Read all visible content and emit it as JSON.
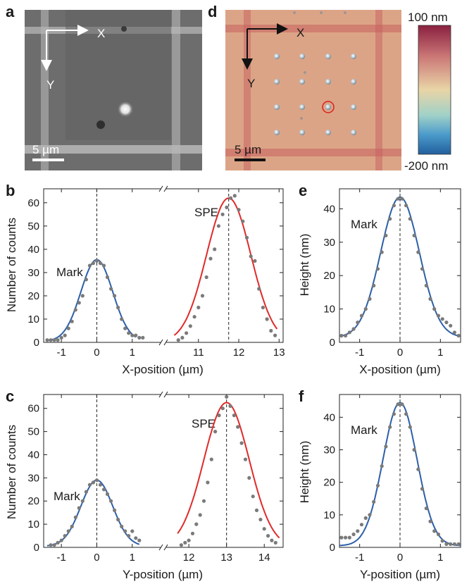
{
  "panel_letters": {
    "a": "a",
    "b": "b",
    "c": "c",
    "d": "d",
    "e": "e",
    "f": "f"
  },
  "images": {
    "a": {
      "axis_x": "X",
      "axis_y": "Y",
      "scale_label": "5 µm"
    },
    "d": {
      "axis_x": "X",
      "axis_y": "Y",
      "scale_label": "5 µm",
      "colorbar": {
        "max_label": "100 nm",
        "min_label": "-200 nm",
        "colors": [
          "#8a2040",
          "#cc7a78",
          "#e9d5a6",
          "#9fd1c8",
          "#4a9acb",
          "#215f9c"
        ]
      }
    }
  },
  "colors": {
    "mark_fit": "#2d5fa8",
    "spe_fit": "#e02a2a",
    "data_points": "#7a7a7a",
    "map_bg": "#dca486",
    "map_line": "#c6605f"
  },
  "chart_data": [
    {
      "id": "b",
      "type": "scatter",
      "ylabel": "Number of counts",
      "xlabel": "X-position (µm)",
      "ylim": [
        0,
        66
      ],
      "yticks": [
        "0",
        "10",
        "20",
        "30",
        "40",
        "50",
        "60"
      ],
      "broken_axis": true,
      "segments": [
        {
          "xlim": [
            -1.5,
            1.8
          ],
          "xticks": [
            "-1",
            "0",
            "1"
          ]
        },
        {
          "xlim": [
            10.2,
            13.1
          ],
          "xticks": [
            "11",
            "12",
            "13"
          ]
        }
      ],
      "dashed_lines": [
        0,
        11.75
      ],
      "annotations": [
        {
          "text": "Mark"
        },
        {
          "text": "SPE"
        }
      ],
      "fits": [
        {
          "name": "Mark",
          "center": 0,
          "sigma": 0.45,
          "amplitude": 35,
          "baseline": 0.5,
          "range": [
            -1.4,
            1.1
          ]
        },
        {
          "name": "SPE",
          "center": 11.75,
          "sigma": 0.55,
          "amplitude": 62,
          "baseline": 0,
          "range": [
            10.4,
            12.95
          ]
        }
      ],
      "points": {
        "Mark": [
          [
            -1.4,
            1
          ],
          [
            -1.3,
            1
          ],
          [
            -1.2,
            1
          ],
          [
            -1.1,
            1
          ],
          [
            -1.0,
            2
          ],
          [
            -0.9,
            3
          ],
          [
            -0.8,
            6
          ],
          [
            -0.7,
            9
          ],
          [
            -0.6,
            14
          ],
          [
            -0.5,
            17
          ],
          [
            -0.4,
            20
          ],
          [
            -0.3,
            27
          ],
          [
            -0.2,
            33
          ],
          [
            -0.1,
            34
          ],
          [
            0,
            35
          ],
          [
            0.1,
            34
          ],
          [
            0.2,
            33
          ],
          [
            0.3,
            28
          ],
          [
            0.4,
            23
          ],
          [
            0.5,
            20
          ],
          [
            0.6,
            15
          ],
          [
            0.7,
            10
          ],
          [
            0.8,
            6
          ],
          [
            0.9,
            4
          ],
          [
            1.0,
            3
          ],
          [
            1.1,
            3
          ],
          [
            1.2,
            2
          ],
          [
            1.3,
            2
          ]
        ],
        "SPE": [
          [
            10.5,
            1
          ],
          [
            10.6,
            2
          ],
          [
            10.7,
            4
          ],
          [
            10.8,
            7
          ],
          [
            10.9,
            11
          ],
          [
            11.0,
            15
          ],
          [
            11.1,
            20
          ],
          [
            11.2,
            28
          ],
          [
            11.3,
            36
          ],
          [
            11.4,
            40
          ],
          [
            11.5,
            50
          ],
          [
            11.6,
            55
          ],
          [
            11.7,
            58
          ],
          [
            11.8,
            62
          ],
          [
            11.9,
            63
          ],
          [
            12.0,
            57
          ],
          [
            12.1,
            52
          ],
          [
            12.2,
            45
          ],
          [
            12.3,
            37
          ],
          [
            12.4,
            35
          ],
          [
            12.5,
            23
          ],
          [
            12.6,
            15
          ],
          [
            12.7,
            10
          ],
          [
            12.8,
            5
          ],
          [
            12.9,
            3
          ]
        ]
      }
    },
    {
      "id": "c",
      "type": "scatter",
      "ylabel": "Number of counts",
      "xlabel": "Y-position (µm)",
      "ylim": [
        0,
        66
      ],
      "yticks": [
        "0",
        "10",
        "20",
        "30",
        "40",
        "50",
        "60"
      ],
      "broken_axis": true,
      "segments": [
        {
          "xlim": [
            -1.5,
            1.8
          ],
          "xticks": [
            "-1",
            "0",
            "1"
          ]
        },
        {
          "xlim": [
            11.4,
            14.5
          ],
          "xticks": [
            "12",
            "13",
            "14"
          ]
        }
      ],
      "dashed_lines": [
        0,
        13
      ],
      "annotations": [
        {
          "text": "Mark"
        },
        {
          "text": "SPE"
        }
      ],
      "fits": [
        {
          "name": "Mark",
          "center": 0,
          "sigma": 0.45,
          "amplitude": 28.5,
          "baseline": 0.5,
          "range": [
            -1.4,
            1.2
          ]
        },
        {
          "name": "SPE",
          "center": 13,
          "sigma": 0.6,
          "amplitude": 62.5,
          "baseline": 0,
          "range": [
            11.7,
            14.4
          ]
        }
      ],
      "points": {
        "Mark": [
          [
            -1.3,
            1
          ],
          [
            -1.2,
            1
          ],
          [
            -1.1,
            2
          ],
          [
            -1.0,
            3
          ],
          [
            -0.9,
            5
          ],
          [
            -0.8,
            7
          ],
          [
            -0.7,
            9
          ],
          [
            -0.6,
            13
          ],
          [
            -0.5,
            17
          ],
          [
            -0.4,
            20
          ],
          [
            -0.3,
            24
          ],
          [
            -0.2,
            27
          ],
          [
            -0.1,
            28
          ],
          [
            0,
            29
          ],
          [
            0.1,
            27
          ],
          [
            0.2,
            25
          ],
          [
            0.3,
            23
          ],
          [
            0.4,
            20
          ],
          [
            0.5,
            16
          ],
          [
            0.6,
            12
          ],
          [
            0.7,
            9
          ],
          [
            0.8,
            7
          ],
          [
            0.9,
            5
          ],
          [
            1.0,
            7
          ],
          [
            1.1,
            4
          ],
          [
            1.2,
            3
          ]
        ],
        "SPE": [
          [
            11.8,
            1
          ],
          [
            11.9,
            2
          ],
          [
            12.0,
            3
          ],
          [
            12.1,
            6
          ],
          [
            12.2,
            10
          ],
          [
            12.3,
            14
          ],
          [
            12.4,
            20
          ],
          [
            12.5,
            28
          ],
          [
            12.6,
            38
          ],
          [
            12.7,
            50
          ],
          [
            12.8,
            57
          ],
          [
            12.9,
            60
          ],
          [
            13.0,
            65
          ],
          [
            13.1,
            61
          ],
          [
            13.2,
            57
          ],
          [
            13.3,
            52
          ],
          [
            13.4,
            45
          ],
          [
            13.5,
            38
          ],
          [
            13.6,
            30
          ],
          [
            13.7,
            22
          ],
          [
            13.8,
            16
          ],
          [
            13.9,
            12
          ],
          [
            14.0,
            8
          ],
          [
            14.1,
            5
          ],
          [
            14.2,
            3
          ],
          [
            14.3,
            2
          ]
        ]
      }
    },
    {
      "id": "e",
      "type": "scatter",
      "ylabel": "Height (nm)",
      "xlabel": "X-position (µm)",
      "xlim": [
        -1.5,
        1.5
      ],
      "ylim": [
        0,
        46
      ],
      "xticks": [
        "-1",
        "0",
        "1"
      ],
      "yticks": [
        "0",
        "10",
        "20",
        "30",
        "40"
      ],
      "dashed_lines": [
        0
      ],
      "annotations": [
        {
          "text": "Mark"
        }
      ],
      "fits": [
        {
          "name": "Mark",
          "center": 0,
          "sigma": 0.48,
          "amplitude": 42,
          "baseline": 1.5,
          "range": [
            -1.5,
            1.5
          ]
        }
      ],
      "points": {
        "Mark": [
          [
            -1.45,
            2
          ],
          [
            -1.35,
            2
          ],
          [
            -1.25,
            3
          ],
          [
            -1.15,
            4
          ],
          [
            -1.05,
            6
          ],
          [
            -0.95,
            8
          ],
          [
            -0.85,
            10
          ],
          [
            -0.75,
            13
          ],
          [
            -0.65,
            17
          ],
          [
            -0.55,
            22
          ],
          [
            -0.45,
            27
          ],
          [
            -0.35,
            32
          ],
          [
            -0.25,
            37
          ],
          [
            -0.15,
            41
          ],
          [
            -0.05,
            43
          ],
          [
            0.05,
            43
          ],
          [
            0.15,
            41
          ],
          [
            0.25,
            37
          ],
          [
            0.35,
            32
          ],
          [
            0.45,
            27
          ],
          [
            0.55,
            22
          ],
          [
            0.65,
            17
          ],
          [
            0.75,
            13
          ],
          [
            0.85,
            10
          ],
          [
            0.95,
            8
          ],
          [
            1.05,
            7
          ],
          [
            1.15,
            6
          ],
          [
            1.25,
            5
          ],
          [
            1.35,
            3
          ],
          [
            1.45,
            2
          ]
        ]
      }
    },
    {
      "id": "f",
      "type": "scatter",
      "ylabel": "Height (nm)",
      "xlabel": "Y-position (µm)",
      "xlim": [
        -1.5,
        1.5
      ],
      "ylim": [
        0,
        47
      ],
      "xticks": [
        "-1",
        "0",
        "1"
      ],
      "yticks": [
        "0",
        "10",
        "20",
        "30",
        "40"
      ],
      "dashed_lines": [
        0
      ],
      "annotations": [
        {
          "text": "Mark"
        }
      ],
      "fits": [
        {
          "name": "Mark",
          "center": 0,
          "sigma": 0.42,
          "amplitude": 44,
          "baseline": 0.5,
          "range": [
            -1.5,
            1.5
          ]
        }
      ],
      "points": {
        "Mark": [
          [
            -1.45,
            3
          ],
          [
            -1.35,
            3
          ],
          [
            -1.25,
            3
          ],
          [
            -1.15,
            4
          ],
          [
            -1.05,
            5
          ],
          [
            -0.95,
            7
          ],
          [
            -0.85,
            9
          ],
          [
            -0.75,
            10
          ],
          [
            -0.65,
            14
          ],
          [
            -0.55,
            19
          ],
          [
            -0.45,
            25
          ],
          [
            -0.35,
            31
          ],
          [
            -0.25,
            37
          ],
          [
            -0.15,
            41
          ],
          [
            -0.05,
            44
          ],
          [
            0.05,
            44
          ],
          [
            0.15,
            41
          ],
          [
            0.25,
            37
          ],
          [
            0.35,
            30
          ],
          [
            0.45,
            24
          ],
          [
            0.55,
            18
          ],
          [
            0.65,
            12
          ],
          [
            0.75,
            8
          ],
          [
            0.85,
            5
          ],
          [
            0.95,
            4
          ],
          [
            1.05,
            2
          ],
          [
            1.15,
            1
          ],
          [
            1.25,
            1
          ],
          [
            1.35,
            1
          ],
          [
            1.45,
            1
          ]
        ]
      }
    }
  ]
}
